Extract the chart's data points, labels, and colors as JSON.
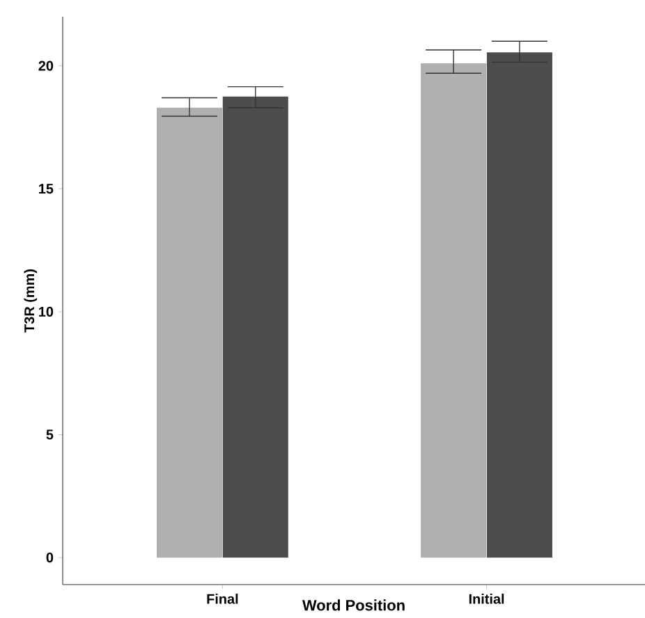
{
  "chart_data": {
    "type": "bar",
    "xlabel": "Word Position",
    "ylabel": "T3R (mm)",
    "categories": [
      "Final",
      "Initial"
    ],
    "series": [
      {
        "color": "#b0b0b0",
        "values": [
          18.3,
          20.1
        ],
        "errors": [
          [
            17.95,
            18.7
          ],
          [
            19.7,
            20.65
          ]
        ]
      },
      {
        "color": "#4d4d4d",
        "values": [
          18.75,
          20.55
        ],
        "errors": [
          [
            18.3,
            19.15
          ],
          [
            20.15,
            21.0
          ]
        ]
      }
    ],
    "ylim": [
      -1.1,
      22
    ],
    "yticks": [
      0,
      5,
      10,
      15,
      20
    ]
  }
}
